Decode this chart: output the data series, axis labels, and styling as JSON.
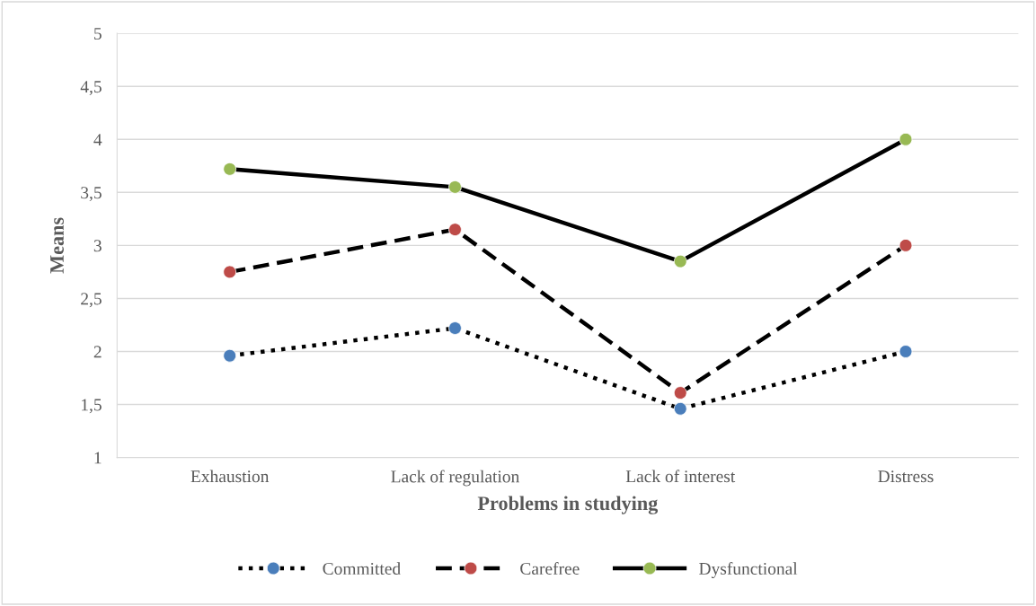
{
  "chart_data": {
    "type": "line",
    "xlabel": "Problems in studying",
    "ylabel": "Means",
    "categories": [
      "Exhaustion",
      "Lack of regulation",
      "Lack of interest",
      "Distress"
    ],
    "series": [
      {
        "name": "Committed",
        "color": "#4a7ebb",
        "line_style": "dotted",
        "values": [
          1.96,
          2.22,
          1.46,
          2.0
        ]
      },
      {
        "name": "Carefree",
        "color": "#be4b48",
        "line_style": "dashed",
        "values": [
          2.75,
          3.15,
          1.61,
          3.0
        ]
      },
      {
        "name": "Dysfunctional",
        "color": "#98b954",
        "line_style": "solid",
        "values": [
          3.72,
          3.55,
          2.85,
          4.0
        ]
      }
    ],
    "ylim": [
      1,
      5
    ],
    "yticks": [
      1,
      {
        "value": 1.5,
        "label": "1,5"
      },
      2,
      {
        "value": 2.5,
        "label": "2,5"
      },
      3,
      {
        "value": 3.5,
        "label": "3,5"
      },
      4,
      {
        "value": 4.5,
        "label": "4,5"
      },
      5
    ],
    "grid": "y",
    "legend": "bottom",
    "marker": "circle"
  }
}
